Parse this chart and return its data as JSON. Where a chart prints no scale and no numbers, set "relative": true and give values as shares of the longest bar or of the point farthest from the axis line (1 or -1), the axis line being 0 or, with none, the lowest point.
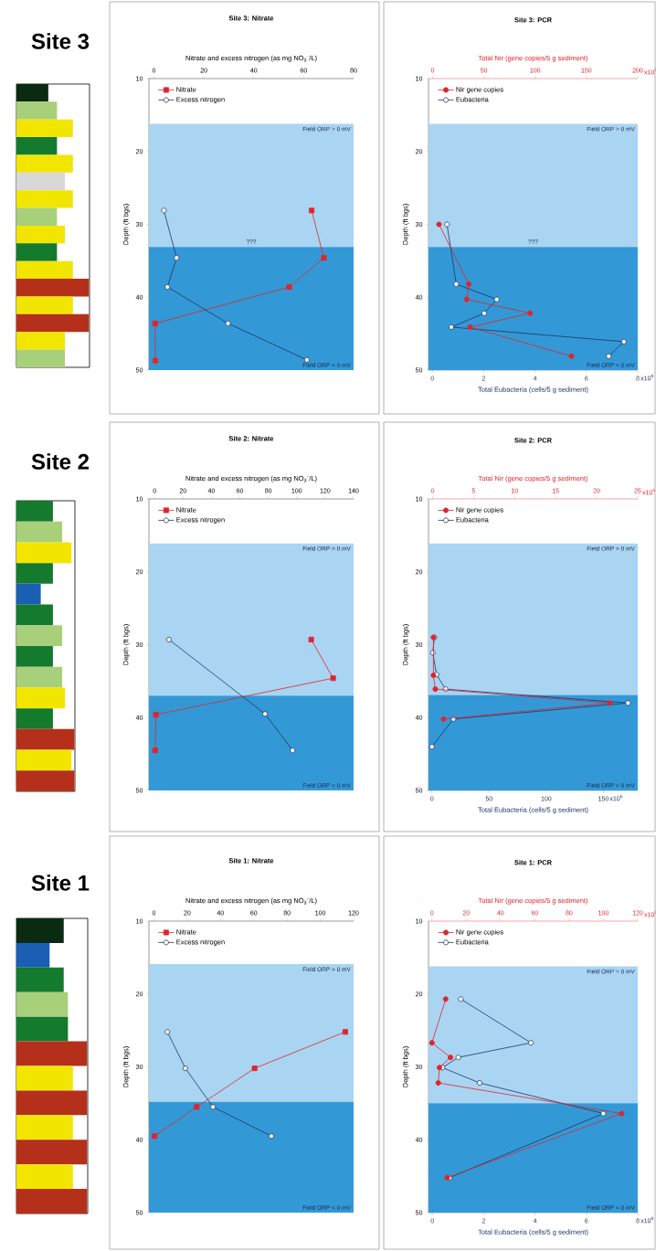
{
  "chart_data": [
    {
      "type": "bar",
      "title": "Site 3",
      "orientation": "horizontal",
      "relative": true,
      "categories": [
        null,
        null,
        null,
        null,
        null,
        null,
        null,
        null,
        null,
        null,
        null,
        null,
        null,
        null,
        null,
        null
      ],
      "values": [
        0.44,
        0.56,
        0.78,
        0.56,
        0.78,
        0.67,
        0.78,
        0.56,
        0.67,
        0.56,
        0.78,
        1,
        0.78,
        1,
        0.67,
        0.67
      ],
      "colors": [
        "#0b2a12",
        "#a8cf7a",
        "#f2e600",
        "#137a2e",
        "#f2e600",
        "#d8d8d8",
        "#f2e600",
        "#a8cf7a",
        "#f2e600",
        "#137a2e",
        "#f2e600",
        "#b5301a",
        "#f2e600",
        "#b5301a",
        "#f2e600",
        "#a8cf7a"
      ]
    },
    {
      "type": "line",
      "title": "Site 3: Nitrate",
      "xlabel": "Nitrate and excess nitrogen (as mg NO$_{3}$$^{-}$/L)",
      "ylabel": "Depth (ft bgs)",
      "xlim": [
        -2,
        80
      ],
      "xticks": [
        0,
        20,
        40,
        60,
        80
      ],
      "ylim": [
        50,
        10
      ],
      "yticks": [
        10,
        20,
        30,
        40,
        50
      ],
      "legend": "top left",
      "bands": [
        {
          "axis": "y",
          "from": 16.2,
          "to": 33.1,
          "label": "Field ORP > 0 mV",
          "color": "#a9d5f2"
        },
        {
          "axis": "y",
          "from": 33.1,
          "to": 50,
          "label": "Field ORP < 0 mV",
          "color": "#3399d6"
        }
      ],
      "annotations": [
        "???"
      ],
      "series": [
        {
          "name": "Nitrate",
          "color": "#e3232b",
          "marker": "square",
          "x": [
            63.2,
            68.1,
            54.2,
            0.5,
            0.6
          ],
          "values": [
            28.1,
            34.6,
            38.6,
            43.6,
            48.7
          ]
        },
        {
          "name": "Excess nitrogen",
          "color": "#1f3563",
          "marker": "circle",
          "x": [
            4.0,
            9.1,
            5.4,
            29.7,
            61.3
          ],
          "values": [
            28.1,
            34.6,
            38.6,
            43.6,
            48.6
          ]
        }
      ]
    },
    {
      "type": "line",
      "title": "Site 3: PCR",
      "xlabel": "Total Eubacteria (cells/5 g sediment)",
      "x2label": "Total Nir (gene copies/5 g sediment)",
      "ylabel": "Depth (ft bgs)",
      "xlim": [
        -0.15,
        8
      ],
      "xticks": [
        0,
        2,
        4,
        6,
        8
      ],
      "x2lim": [
        -4,
        200
      ],
      "x2ticks": [
        0,
        50,
        100,
        150,
        200
      ],
      "ylim": [
        50,
        10
      ],
      "yticks": [
        10,
        20,
        30,
        40,
        50
      ],
      "legend": "top left",
      "bands": [
        {
          "axis": "y",
          "from": 16.2,
          "to": 33.1,
          "label": "Field ORP > 0 mV",
          "color": "#a9d5f2"
        },
        {
          "axis": "y",
          "from": 33.1,
          "to": 50,
          "label": "Field ORP < 0 mV",
          "color": "#3399d6"
        }
      ],
      "annotations": [
        "???",
        "x10$^{9}$",
        "x10$^{7}$"
      ],
      "series": [
        {
          "name": "Nir gene copies",
          "color": "#e3232b",
          "marker": "circle",
          "axis": "x2",
          "x": [
            6.2,
            35.3,
            33.2,
            95.1,
            36.4,
            135.4
          ],
          "values": [
            30,
            38.2,
            40.3,
            42.2,
            44.1,
            48.1
          ]
        },
        {
          "name": "Eubacteria",
          "color": "#1f3563",
          "marker": "circle",
          "x": [
            0.57,
            0.93,
            2.51,
            2.02,
            0.74,
            7.46,
            6.87
          ],
          "values": [
            30,
            38.2,
            40.3,
            42.2,
            44.1,
            46.1,
            48.1
          ]
        }
      ]
    },
    {
      "type": "bar",
      "title": "Site 2",
      "orientation": "horizontal",
      "relative": true,
      "categories": [
        null,
        null,
        null,
        null,
        null,
        null,
        null,
        null,
        null,
        null,
        null,
        null,
        null,
        null
      ],
      "values": [
        0.63,
        0.79,
        0.95,
        0.63,
        0.42,
        0.63,
        0.79,
        0.63,
        0.79,
        0.84,
        0.63,
        1,
        0.95,
        1
      ],
      "colors": [
        "#137a2e",
        "#a8cf7a",
        "#f2e600",
        "#137a2e",
        "#1a5fb4",
        "#137a2e",
        "#a8cf7a",
        "#137a2e",
        "#a8cf7a",
        "#f2e600",
        "#137a2e",
        "#b5301a",
        "#f2e600",
        "#b5301a"
      ]
    },
    {
      "type": "line",
      "title": "Site 2: Nitrate",
      "xlabel": "Nitrate and excess nitrogen (as mg NO$_{3}$$^{-}$/L)",
      "ylabel": "Depth (ft bgs)",
      "xlim": [
        -4,
        140
      ],
      "xticks": [
        0,
        20,
        40,
        60,
        80,
        100,
        120,
        140
      ],
      "ylim": [
        50,
        10
      ],
      "yticks": [
        10,
        20,
        30,
        40,
        50
      ],
      "legend": "top left",
      "bands": [
        {
          "axis": "y",
          "from": 16.1,
          "to": 37,
          "label": "Field ORP > 0 mV",
          "color": "#a9d5f2"
        },
        {
          "axis": "y",
          "from": 37,
          "to": 50,
          "label": "Field ORP < 0 mV",
          "color": "#3399d6"
        }
      ],
      "series": [
        {
          "name": "Nitrate",
          "color": "#e3232b",
          "marker": "square",
          "x": [
            110.2,
            125.6,
            0.9,
            0.4
          ],
          "values": [
            29.3,
            34.6,
            39.6,
            44.5
          ]
        },
        {
          "name": "Excess nitrogen",
          "color": "#1f3563",
          "marker": "circle",
          "x": [
            10.1,
            77.7,
            97.1
          ],
          "values": [
            29.3,
            39.5,
            44.5
          ]
        }
      ]
    },
    {
      "type": "line",
      "title": "Site 2: PCR",
      "xlabel": "Total Eubacteria (cells/5 g sediment)",
      "x2label": "Total Nir (gene copies/5 g sediment)",
      "ylabel": "Depth (ft bgs)",
      "xlim": [
        -3,
        180
      ],
      "xticks": [
        0,
        50,
        100,
        150
      ],
      "x2lim": [
        -0.5,
        25
      ],
      "x2ticks": [
        0,
        5,
        10,
        15,
        20,
        25
      ],
      "ylim": [
        50,
        10
      ],
      "yticks": [
        10,
        20,
        30,
        40,
        50
      ],
      "legend": "top left",
      "bands": [
        {
          "axis": "y",
          "from": 16.1,
          "to": 36.9,
          "label": "Field ORP > 0 mV",
          "color": "#a9d5f2"
        },
        {
          "axis": "y",
          "from": 36.9,
          "to": 50,
          "label": "Field ORP < 0 mV",
          "color": "#3399d6"
        }
      ],
      "annotations": [
        "x10$^{6}$",
        "x10$^{6}$"
      ],
      "series": [
        {
          "name": "Nir gene copies",
          "color": "#e3232b",
          "marker": "circle",
          "axis": "x2",
          "x": [
            0.1,
            0.1,
            0.33,
            21.6,
            1.33
          ],
          "values": [
            29.0,
            34.2,
            36.1,
            38.0,
            40.2
          ]
        },
        {
          "name": "Eubacteria",
          "color": "#1f3563",
          "marker": "circle",
          "x": [
            2.1,
            0.8,
            4.0,
            11.9,
            171.5,
            18.8,
            0
          ],
          "values": [
            29.0,
            31.1,
            34.1,
            36.1,
            38.0,
            40.2,
            44.0
          ]
        }
      ]
    },
    {
      "type": "bar",
      "title": "Site 1",
      "orientation": "horizontal",
      "relative": true,
      "categories": [
        null,
        null,
        null,
        null,
        null,
        null,
        null,
        null,
        null,
        null,
        null,
        null
      ],
      "values": [
        0.67,
        0.47,
        0.67,
        0.73,
        0.73,
        1,
        0.8,
        1,
        0.8,
        1,
        0.8,
        1
      ],
      "colors": [
        "#0b2a12",
        "#1a5fb4",
        "#137a2e",
        "#a8cf7a",
        "#137a2e",
        "#b5301a",
        "#f2e600",
        "#b5301a",
        "#f2e600",
        "#b5301a",
        "#f2e600",
        "#b5301a"
      ]
    },
    {
      "type": "line",
      "title": "Site 1: Nitrate",
      "xlabel": "Nitrate and excess nitrogen (as mg NO$_{3}$$^{-}$/L)",
      "ylabel": "Depth (ft bgs)",
      "xlim": [
        -3,
        120
      ],
      "xticks": [
        0,
        20,
        40,
        60,
        80,
        100,
        120
      ],
      "ylim": [
        50,
        10
      ],
      "yticks": [
        10,
        20,
        30,
        40,
        50
      ],
      "legend": "top left",
      "bands": [
        {
          "axis": "y",
          "from": 15.9,
          "to": 34.8,
          "label": "Field ORP > 0 mV",
          "color": "#a9d5f2"
        },
        {
          "axis": "y",
          "from": 34.8,
          "to": 50,
          "label": "Field ORP < 0 mV",
          "color": "#3399d6"
        }
      ],
      "series": [
        {
          "name": "Nitrate",
          "color": "#e3232b",
          "marker": "square",
          "x": [
            115.0,
            60.5,
            25.7,
            0.4
          ],
          "values": [
            25.2,
            30.2,
            35.5,
            39.5
          ]
        },
        {
          "name": "Excess nitrogen",
          "color": "#1f3563",
          "marker": "circle",
          "x": [
            8.1,
            18.9,
            35.5,
            70.6
          ],
          "values": [
            25.2,
            30.2,
            35.5,
            39.5
          ]
        }
      ]
    },
    {
      "type": "line",
      "title": "Site 1: PCR",
      "xlabel": "Total Eubacteria (cells/5 g sediment)",
      "x2label": "Total Nir (gene copies/5 g sediment)",
      "ylabel": "Depth (ft bgs)",
      "xlim": [
        -0.15,
        8
      ],
      "xticks": [
        0,
        2,
        4,
        6,
        8
      ],
      "x2lim": [
        -2,
        120
      ],
      "x2ticks": [
        0,
        20,
        40,
        60,
        80,
        100,
        120
      ],
      "ylim": [
        50,
        10
      ],
      "yticks": [
        10,
        20,
        30,
        40,
        50
      ],
      "legend": "top left",
      "bands": [
        {
          "axis": "y",
          "from": 16.2,
          "to": 35,
          "label": "Field ORP > 0 mV",
          "color": "#a9d5f2"
        },
        {
          "axis": "y",
          "from": 35,
          "to": 50,
          "label": "Field ORP < 0 mV",
          "color": "#3399d6"
        }
      ],
      "annotations": [
        "x10$^{9}$",
        "x10$^{7}$"
      ],
      "series": [
        {
          "name": "Nir gene copies",
          "color": "#e3232b",
          "marker": "circle",
          "axis": "x2",
          "x": [
            8.0,
            0,
            10.8,
            4.4,
            3.7,
            110.6,
            8.9
          ],
          "values": [
            20.7,
            26.7,
            28.7,
            30.1,
            32.2,
            36.4,
            45.2
          ]
        },
        {
          "name": "Eubacteria",
          "color": "#1f3563",
          "marker": "circle",
          "x": [
            1.11,
            3.84,
            1.01,
            0.39,
            1.84,
            6.66,
            0.67
          ],
          "values": [
            20.7,
            26.7,
            28.7,
            30.1,
            32.2,
            36.4,
            45.2
          ]
        }
      ]
    }
  ]
}
